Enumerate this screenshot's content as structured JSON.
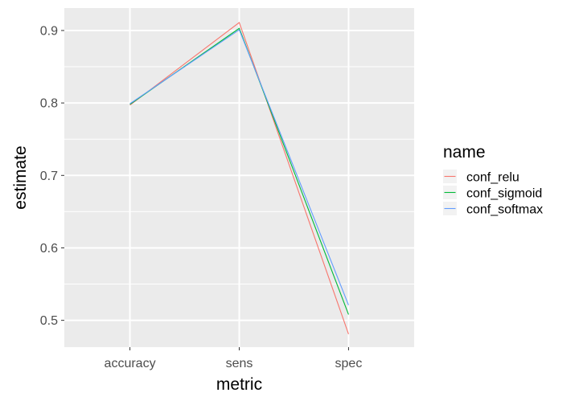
{
  "chart_data": {
    "type": "line",
    "title": "",
    "xlabel": "metric",
    "ylabel": "estimate",
    "categories": [
      "accuracy",
      "sens",
      "spec"
    ],
    "ylim": [
      0.463,
      0.931
    ],
    "yticks": [
      0.5,
      0.6,
      0.7,
      0.8,
      0.9
    ],
    "ytick_labels": [
      "0.5",
      "0.6",
      "0.7",
      "0.8",
      "0.9"
    ],
    "grid": true,
    "background": "#ebebeb",
    "legend": {
      "title": "name",
      "placement": "right"
    },
    "series": [
      {
        "name": "conf_relu",
        "color": "#f8766d",
        "values": [
          0.797,
          0.911,
          0.481
        ]
      },
      {
        "name": "conf_sigmoid",
        "color": "#00ba38",
        "values": [
          0.798,
          0.903,
          0.508
        ]
      },
      {
        "name": "conf_softmax",
        "color": "#619cff",
        "values": [
          0.799,
          0.901,
          0.521
        ]
      }
    ]
  }
}
